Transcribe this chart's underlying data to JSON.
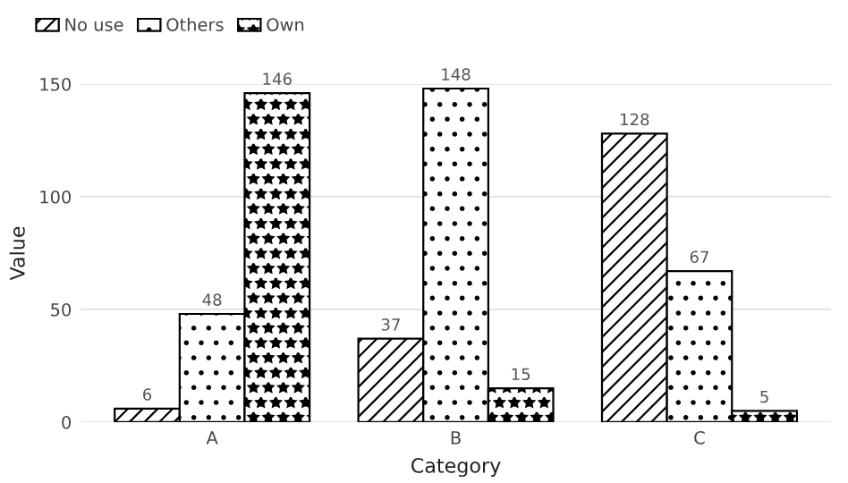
{
  "chart_data": {
    "type": "bar",
    "xlabel": "Category",
    "ylabel": "Value",
    "categories": [
      "A",
      "B",
      "C"
    ],
    "series": [
      {
        "name": "No use",
        "color": "#000000",
        "values": [
          6,
          37,
          128
        ]
      },
      {
        "name": "Others",
        "color": "#000000",
        "values": [
          48,
          148,
          67
        ]
      },
      {
        "name": "Own",
        "color": "#000000",
        "values": [
          146,
          15,
          5
        ]
      }
    ],
    "ylim": [
      0,
      150
    ],
    "yticks": [
      0,
      50,
      100,
      150
    ],
    "grid": "y",
    "legend": "top left",
    "data_labels": true
  }
}
